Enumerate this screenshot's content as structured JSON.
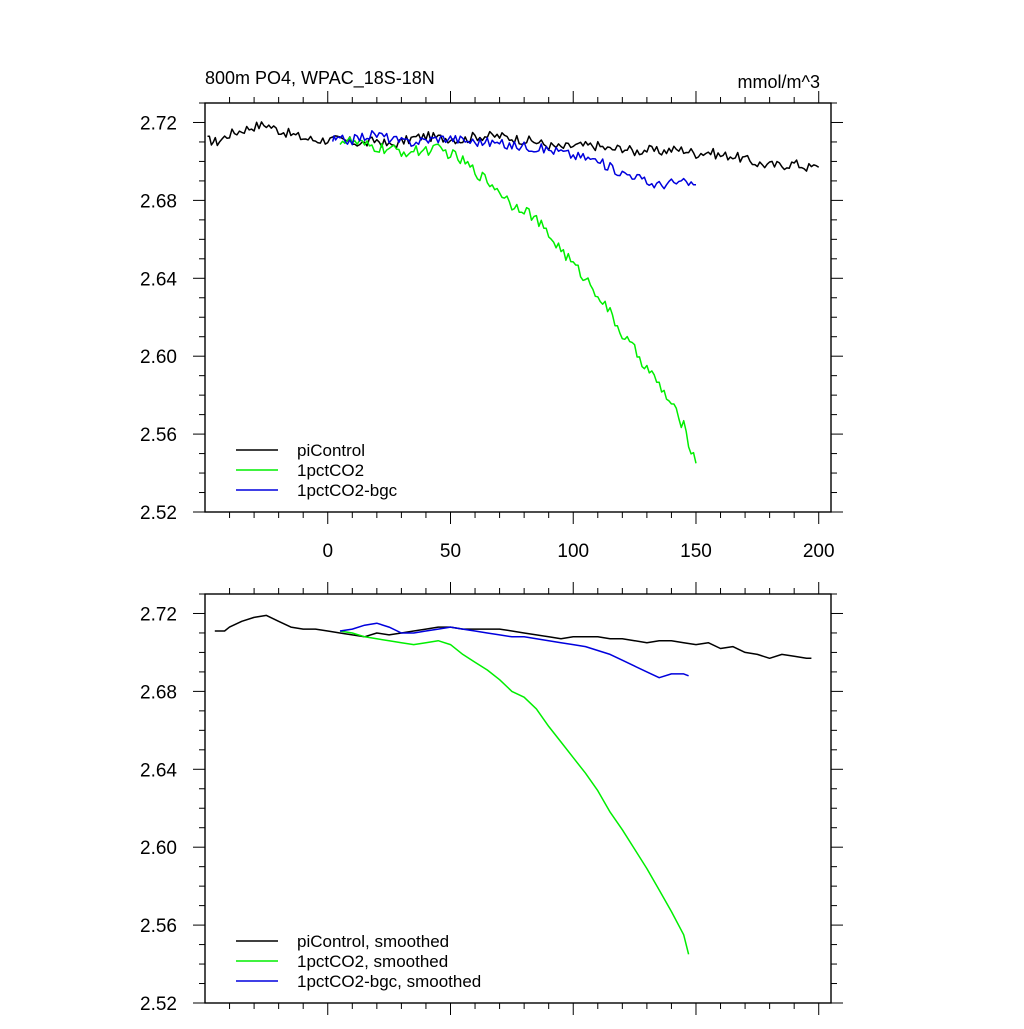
{
  "chart_data": [
    {
      "type": "line",
      "title": "800m PO4, WPAC_18S-18N",
      "units": "mmol/m^3",
      "xlim": [
        -50,
        205
      ],
      "ylim": [
        2.52,
        2.73
      ],
      "x_ticks": [
        0,
        50,
        100,
        150,
        200
      ],
      "x_tick_labels": [
        "0",
        "50",
        "100",
        "150",
        "200"
      ],
      "y_ticks": [
        2.52,
        2.56,
        2.6,
        2.64,
        2.68,
        2.72
      ],
      "y_tick_labels": [
        "2.52",
        "2.56",
        "2.60",
        "2.64",
        "2.68",
        "2.72"
      ],
      "grid": false,
      "legend_position": "bottom-left",
      "series": [
        {
          "name": "piControl",
          "color": "#000000",
          "x": [
            -49,
            -45,
            -40,
            -35,
            -30,
            -25,
            -20,
            -15,
            -10,
            -5,
            0,
            5,
            10,
            15,
            20,
            25,
            30,
            35,
            40,
            45,
            50,
            55,
            60,
            65,
            70,
            75,
            80,
            85,
            90,
            95,
            100,
            105,
            110,
            115,
            120,
            125,
            130,
            135,
            140,
            145,
            150,
            155,
            160,
            165,
            170,
            175,
            180,
            185,
            190,
            195,
            200
          ],
          "y": [
            2.711,
            2.71,
            2.714,
            2.716,
            2.718,
            2.719,
            2.716,
            2.714,
            2.712,
            2.711,
            2.711,
            2.711,
            2.71,
            2.709,
            2.711,
            2.708,
            2.71,
            2.712,
            2.713,
            2.712,
            2.712,
            2.711,
            2.713,
            2.713,
            2.713,
            2.712,
            2.711,
            2.71,
            2.708,
            2.707,
            2.708,
            2.708,
            2.708,
            2.706,
            2.707,
            2.705,
            2.706,
            2.705,
            2.706,
            2.706,
            2.704,
            2.705,
            2.703,
            2.703,
            2.701,
            2.699,
            2.698,
            2.698,
            2.699,
            2.697,
            2.697
          ],
          "noise": 0.0025
        },
        {
          "name": "1pctCO2",
          "color": "#00ee00",
          "x": [
            5,
            10,
            15,
            20,
            25,
            30,
            35,
            40,
            45,
            50,
            55,
            60,
            65,
            70,
            75,
            80,
            85,
            90,
            95,
            100,
            105,
            110,
            115,
            120,
            125,
            130,
            135,
            140,
            145,
            150
          ],
          "y": [
            2.711,
            2.71,
            2.708,
            2.707,
            2.706,
            2.705,
            2.705,
            2.706,
            2.706,
            2.704,
            2.7,
            2.695,
            2.69,
            2.685,
            2.678,
            2.676,
            2.67,
            2.662,
            2.655,
            2.647,
            2.64,
            2.632,
            2.622,
            2.611,
            2.603,
            2.594,
            2.585,
            2.575,
            2.564,
            2.545
          ],
          "noise": 0.003
        },
        {
          "name": "1pctCO2-bgc",
          "color": "#0000dd",
          "x": [
            2,
            5,
            10,
            15,
            20,
            25,
            30,
            35,
            40,
            45,
            50,
            55,
            60,
            65,
            70,
            75,
            80,
            85,
            90,
            95,
            100,
            105,
            110,
            115,
            120,
            125,
            130,
            135,
            140,
            145,
            150
          ],
          "y": [
            2.711,
            2.711,
            2.711,
            2.713,
            2.714,
            2.712,
            2.71,
            2.71,
            2.711,
            2.712,
            2.712,
            2.711,
            2.71,
            2.71,
            2.709,
            2.708,
            2.708,
            2.707,
            2.706,
            2.705,
            2.703,
            2.702,
            2.7,
            2.697,
            2.694,
            2.693,
            2.689,
            2.688,
            2.689,
            2.689,
            2.688
          ],
          "noise": 0.0025
        }
      ]
    },
    {
      "type": "line",
      "title": "",
      "xlim": [
        -50,
        205
      ],
      "ylim": [
        2.52,
        2.73
      ],
      "x_ticks": [
        0,
        50,
        100,
        150,
        200
      ],
      "y_ticks": [
        2.52,
        2.56,
        2.6,
        2.64,
        2.68,
        2.72
      ],
      "y_tick_labels": [
        "2.52",
        "2.56",
        "2.60",
        "2.64",
        "2.68",
        "2.72"
      ],
      "grid": false,
      "legend_position": "bottom-left",
      "series": [
        {
          "name": "piControl, smoothed",
          "color": "#000000",
          "x": [
            -46,
            -42,
            -40,
            -35,
            -30,
            -25,
            -20,
            -15,
            -10,
            -5,
            0,
            5,
            10,
            15,
            20,
            25,
            30,
            35,
            40,
            45,
            50,
            55,
            60,
            65,
            70,
            75,
            80,
            85,
            90,
            95,
            100,
            105,
            110,
            115,
            120,
            125,
            130,
            135,
            140,
            145,
            150,
            155,
            160,
            165,
            170,
            175,
            180,
            185,
            190,
            195,
            197
          ],
          "y": [
            2.711,
            2.711,
            2.713,
            2.716,
            2.718,
            2.719,
            2.716,
            2.713,
            2.712,
            2.712,
            2.711,
            2.71,
            2.709,
            2.708,
            2.71,
            2.709,
            2.71,
            2.711,
            2.712,
            2.713,
            2.713,
            2.712,
            2.712,
            2.712,
            2.712,
            2.711,
            2.71,
            2.709,
            2.708,
            2.707,
            2.708,
            2.708,
            2.708,
            2.707,
            2.707,
            2.706,
            2.705,
            2.706,
            2.706,
            2.705,
            2.704,
            2.705,
            2.702,
            2.703,
            2.7,
            2.699,
            2.697,
            2.699,
            2.698,
            2.697,
            2.697
          ]
        },
        {
          "name": "1pctCO2, smoothed",
          "color": "#00ee00",
          "x": [
            5,
            10,
            15,
            20,
            25,
            30,
            35,
            40,
            45,
            50,
            55,
            60,
            65,
            70,
            75,
            80,
            85,
            90,
            95,
            100,
            105,
            110,
            115,
            120,
            125,
            130,
            135,
            140,
            145,
            147
          ],
          "y": [
            2.711,
            2.71,
            2.708,
            2.707,
            2.706,
            2.705,
            2.704,
            2.705,
            2.706,
            2.704,
            2.699,
            2.695,
            2.691,
            2.686,
            2.68,
            2.677,
            2.671,
            2.662,
            2.654,
            2.646,
            2.638,
            2.629,
            2.618,
            2.609,
            2.599,
            2.589,
            2.578,
            2.567,
            2.555,
            2.545
          ]
        },
        {
          "name": "1pctCO2-bgc, smoothed",
          "color": "#0000dd",
          "x": [
            5,
            10,
            15,
            20,
            25,
            30,
            35,
            40,
            45,
            50,
            55,
            60,
            65,
            70,
            75,
            80,
            85,
            90,
            95,
            100,
            105,
            110,
            115,
            120,
            125,
            130,
            135,
            140,
            145,
            147
          ],
          "y": [
            2.711,
            2.712,
            2.714,
            2.715,
            2.713,
            2.71,
            2.71,
            2.711,
            2.712,
            2.713,
            2.712,
            2.711,
            2.71,
            2.709,
            2.708,
            2.708,
            2.707,
            2.706,
            2.705,
            2.704,
            2.703,
            2.701,
            2.699,
            2.696,
            2.693,
            2.69,
            2.687,
            2.689,
            2.689,
            2.688
          ]
        }
      ]
    }
  ]
}
